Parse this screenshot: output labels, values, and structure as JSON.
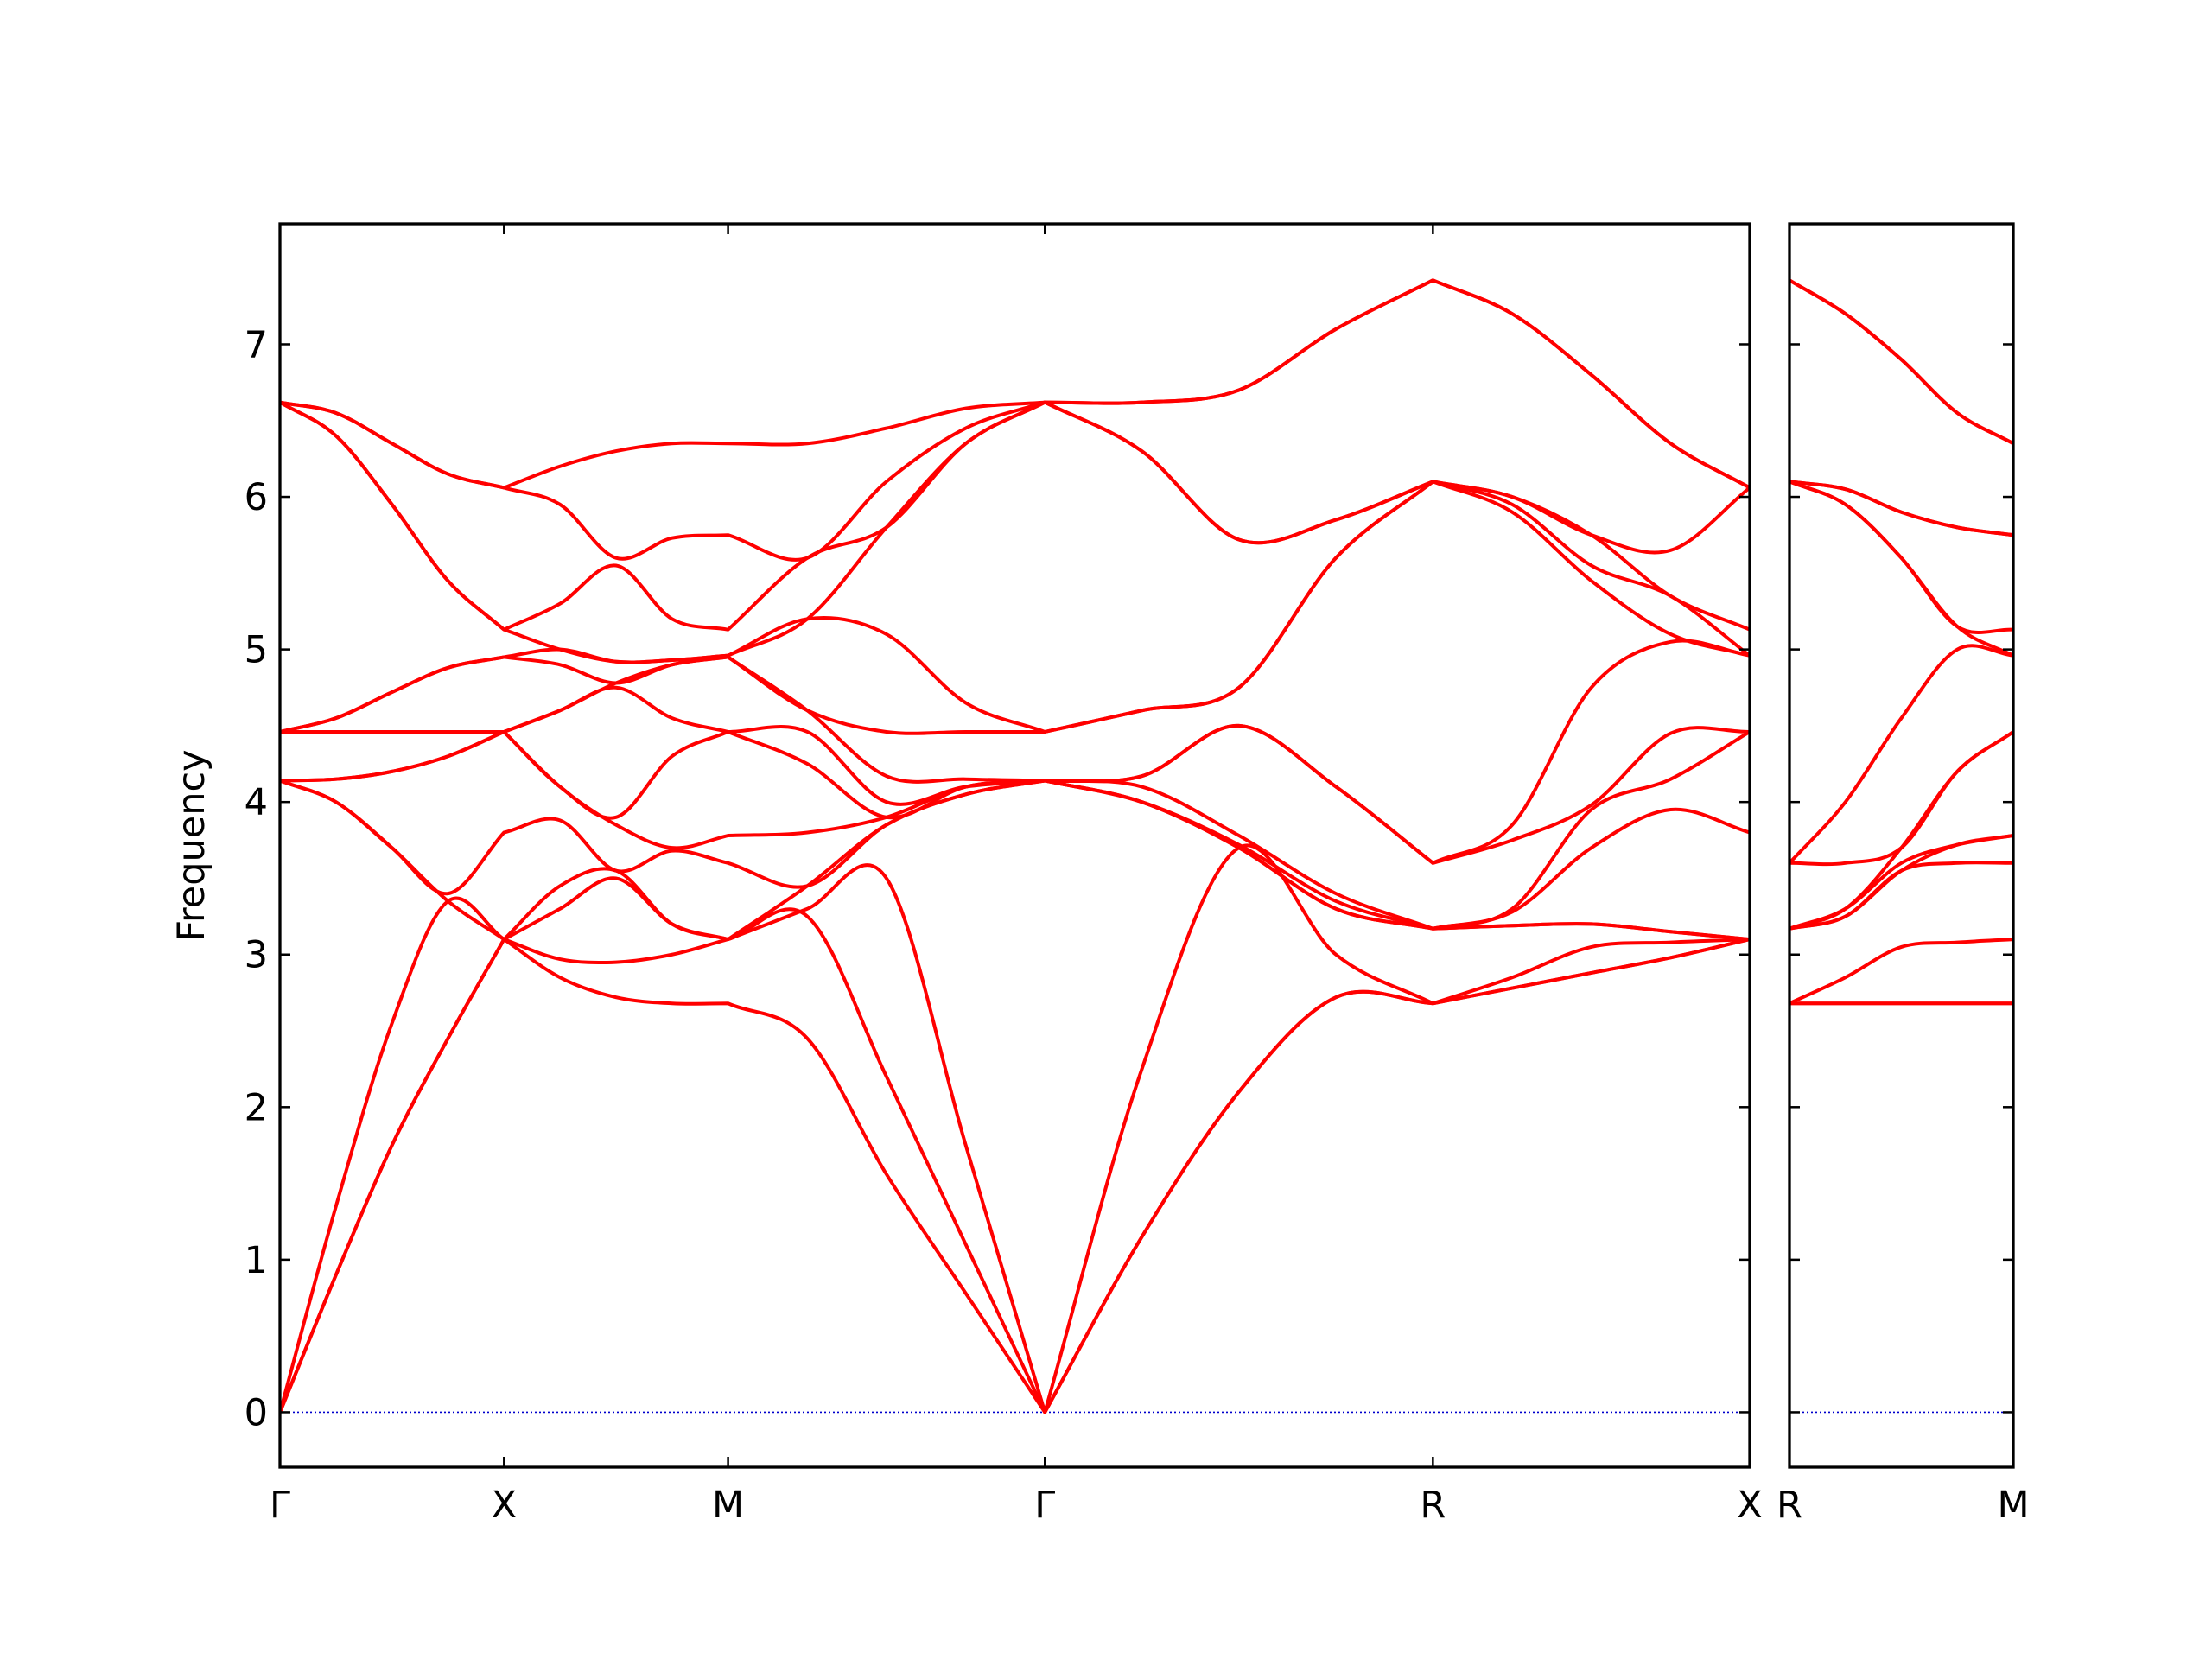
{
  "chart_data": [
    {
      "type": "line",
      "ylabel": "Frequency",
      "color": "#ff0000",
      "hline": 0,
      "hline_color": "#0000cc",
      "x": [
        0,
        0.25,
        0.5,
        0.75,
        1,
        1.25,
        1.5,
        1.75,
        2,
        2.354,
        2.707,
        3.061,
        3.414,
        3.847,
        4.28,
        4.713,
        5.146,
        5.5,
        5.853,
        6.207,
        6.56
      ],
      "xlim": [
        0,
        6.56
      ],
      "xticks": [
        {
          "value": 0,
          "label": "Γ"
        },
        {
          "value": 1,
          "label": "X"
        },
        {
          "value": 2,
          "label": "M"
        },
        {
          "value": 3.414,
          "label": "Γ"
        },
        {
          "value": 5.146,
          "label": "R"
        },
        {
          "value": 6.56,
          "label": "X"
        }
      ],
      "ylim": [
        -0.36,
        7.79
      ],
      "yticks": [
        0,
        1,
        2,
        3,
        4,
        5,
        6,
        7
      ],
      "series": [
        {
          "values": [
            0,
            0.9,
            1.75,
            2.45,
            3.1,
            2.85,
            2.72,
            2.68,
            2.68,
            2.45,
            1.56,
            0.78,
            0,
            1.15,
            2.1,
            2.72,
            2.68,
            2.78,
            2.88,
            2.98,
            3.1
          ]
        },
        {
          "values": [
            0,
            0.9,
            1.75,
            2.45,
            3.1,
            2.97,
            2.95,
            3.0,
            3.1,
            3.25,
            2.2,
            1.1,
            0,
            1.15,
            2.1,
            2.72,
            2.68,
            2.78,
            2.88,
            2.98,
            3.1
          ]
        },
        {
          "values": [
            0,
            1.35,
            2.55,
            3.35,
            3.1,
            3.3,
            3.5,
            3.2,
            3.1,
            3.3,
            3.5,
            1.75,
            0,
            2.25,
            3.7,
            3.0,
            2.68,
            2.85,
            3.05,
            3.08,
            3.1
          ]
        },
        {
          "values": [
            4.14,
            4.0,
            3.7,
            3.35,
            3.1,
            3.45,
            3.55,
            3.2,
            3.1,
            3.45,
            3.85,
            4.05,
            4.14,
            4.0,
            3.7,
            3.3,
            3.17,
            3.19,
            3.2,
            3.15,
            3.1
          ]
        },
        {
          "values": [
            4.14,
            4.0,
            3.7,
            3.4,
            3.8,
            3.88,
            3.55,
            3.68,
            3.6,
            3.45,
            3.85,
            4.05,
            4.14,
            4.0,
            3.7,
            3.3,
            3.17,
            3.19,
            3.2,
            3.15,
            3.1
          ]
        },
        {
          "values": [
            4.14,
            4.15,
            4.2,
            4.3,
            4.46,
            4.1,
            3.85,
            3.7,
            3.78,
            3.8,
            3.9,
            4.1,
            4.14,
            4.0,
            3.72,
            3.35,
            3.17,
            3.28,
            3.7,
            3.95,
            3.8
          ]
        },
        {
          "values": [
            4.14,
            4.15,
            4.2,
            4.3,
            4.46,
            4.1,
            3.9,
            4.3,
            4.46,
            4.25,
            3.9,
            4.1,
            4.14,
            4.1,
            3.78,
            3.4,
            3.17,
            3.3,
            3.95,
            4.15,
            4.46
          ]
        },
        {
          "values": [
            4.46,
            4.46,
            4.46,
            4.46,
            4.46,
            4.6,
            4.75,
            4.55,
            4.46,
            4.46,
            4.0,
            4.1,
            4.14,
            4.17,
            4.5,
            4.1,
            3.6,
            3.75,
            3.98,
            4.45,
            4.46
          ]
        },
        {
          "values": [
            4.46,
            4.46,
            4.46,
            4.46,
            4.46,
            4.6,
            4.78,
            4.9,
            4.95,
            4.6,
            4.17,
            4.15,
            4.14,
            4.17,
            4.5,
            4.1,
            3.6,
            3.85,
            4.75,
            5.05,
            4.96
          ]
        },
        {
          "values": [
            4.46,
            4.55,
            4.72,
            4.88,
            4.95,
            4.9,
            4.78,
            4.9,
            4.95,
            4.6,
            4.46,
            4.46,
            4.46,
            4.6,
            4.75,
            5.6,
            6.1,
            5.9,
            5.45,
            5.1,
            4.96
          ]
        },
        {
          "values": [
            4.46,
            4.55,
            4.72,
            4.88,
            4.95,
            5.0,
            4.92,
            4.93,
            4.96,
            5.2,
            5.1,
            4.65,
            4.46,
            4.6,
            4.75,
            5.6,
            6.1,
            5.95,
            5.55,
            5.35,
            4.96
          ]
        },
        {
          "values": [
            6.62,
            6.4,
            5.95,
            5.45,
            5.13,
            5.0,
            4.92,
            4.93,
            4.96,
            5.2,
            5.8,
            6.35,
            6.62,
            6.3,
            5.72,
            5.85,
            6.1,
            6.0,
            5.75,
            5.35,
            5.13
          ]
        },
        {
          "values": [
            6.62,
            6.4,
            5.95,
            5.45,
            5.13,
            5.3,
            5.55,
            5.2,
            5.13,
            5.6,
            5.8,
            6.35,
            6.62,
            6.3,
            5.72,
            5.85,
            6.1,
            6.0,
            5.75,
            5.65,
            6.06
          ]
        },
        {
          "values": [
            6.62,
            6.55,
            6.35,
            6.15,
            6.06,
            5.95,
            5.6,
            5.73,
            5.75,
            5.6,
            6.1,
            6.45,
            6.62,
            6.62,
            6.7,
            7.1,
            7.42,
            7.2,
            6.8,
            6.35,
            6.06
          ]
        },
        {
          "values": [
            6.62,
            6.55,
            6.35,
            6.15,
            6.06,
            6.2,
            6.3,
            6.35,
            6.35,
            6.35,
            6.45,
            6.58,
            6.62,
            6.62,
            6.7,
            7.1,
            7.42,
            7.2,
            6.8,
            6.35,
            6.06
          ]
        }
      ]
    },
    {
      "type": "line",
      "color": "#ff0000",
      "hline": 0,
      "hline_color": "#0000cc",
      "ytick_labels": false,
      "x": [
        0,
        0.25,
        0.5,
        0.75,
        1
      ],
      "xlim": [
        0,
        1
      ],
      "xticks": [
        {
          "value": 0,
          "label": "R"
        },
        {
          "value": 1,
          "label": "M"
        }
      ],
      "ylim": [
        -0.36,
        7.79
      ],
      "yticks": [
        0,
        1,
        2,
        3,
        4,
        5,
        6,
        7
      ],
      "series": [
        {
          "values": [
            2.68,
            2.68,
            2.68,
            2.68,
            2.68
          ]
        },
        {
          "values": [
            2.68,
            2.68,
            2.68,
            2.68,
            2.68
          ]
        },
        {
          "values": [
            2.68,
            2.85,
            3.05,
            3.08,
            3.1
          ]
        },
        {
          "values": [
            3.17,
            3.25,
            3.55,
            3.6,
            3.6
          ]
        },
        {
          "values": [
            3.17,
            3.25,
            3.55,
            3.72,
            3.78
          ]
        },
        {
          "values": [
            3.17,
            3.3,
            3.6,
            3.72,
            3.78
          ]
        },
        {
          "values": [
            3.17,
            3.3,
            3.7,
            4.2,
            4.46
          ]
        },
        {
          "values": [
            3.6,
            3.6,
            3.7,
            4.2,
            4.46
          ]
        },
        {
          "values": [
            3.6,
            4.0,
            4.55,
            5.0,
            4.96
          ]
        },
        {
          "values": [
            6.1,
            5.95,
            5.6,
            5.15,
            4.96
          ]
        },
        {
          "values": [
            6.1,
            5.95,
            5.6,
            5.15,
            5.13
          ]
        },
        {
          "values": [
            6.1,
            6.05,
            5.9,
            5.8,
            5.75
          ]
        },
        {
          "values": [
            6.1,
            6.05,
            5.9,
            5.8,
            5.75
          ]
        },
        {
          "values": [
            7.42,
            7.2,
            6.9,
            6.55,
            6.35
          ]
        },
        {
          "values": [
            7.42,
            7.2,
            6.9,
            6.55,
            6.35
          ]
        }
      ]
    }
  ]
}
